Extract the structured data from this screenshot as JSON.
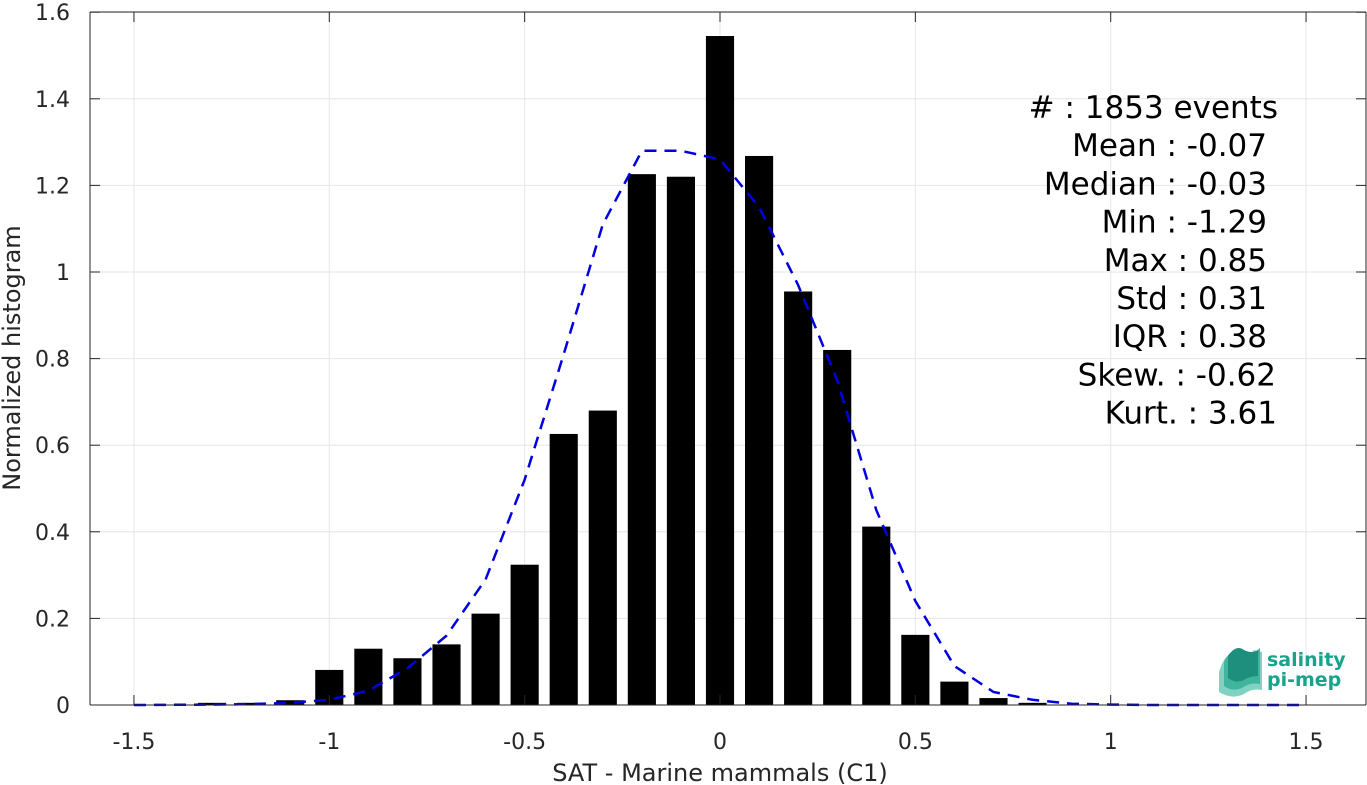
{
  "chart_data": {
    "type": "bar",
    "xlabel": "SAT - Marine mammals (C1)",
    "ylabel": "Normalized histogram",
    "xlim": [
      -1.5,
      1.5
    ],
    "ylim": [
      0,
      1.6
    ],
    "grid": true,
    "x_ticks": [
      "-1.5",
      "-1",
      "-0.5",
      "0",
      "0.5",
      "1",
      "1.5"
    ],
    "y_ticks": [
      "0",
      "0.2",
      "0.4",
      "0.6",
      "0.8",
      "1",
      "1.2",
      "1.4",
      "1.6"
    ],
    "bin_width": 0.1,
    "x": [
      -1.3,
      -1.2,
      -1.1,
      -1.0,
      -0.9,
      -0.8,
      -0.7,
      -0.6,
      -0.5,
      -0.4,
      -0.3,
      -0.2,
      -0.1,
      0.0,
      0.1,
      0.2,
      0.3,
      0.4,
      0.5,
      0.6,
      0.7,
      0.8
    ],
    "values": [
      0.005,
      0.005,
      0.011,
      0.081,
      0.13,
      0.108,
      0.14,
      0.211,
      0.324,
      0.626,
      0.68,
      1.226,
      1.22,
      1.545,
      1.268,
      0.955,
      0.82,
      0.412,
      0.162,
      0.054,
      0.016,
      0.005
    ],
    "fit_curve": {
      "style": "dashed",
      "color": "#0000e0",
      "x": [
        -1.5,
        -1.3,
        -1.2,
        -1.1,
        -1.0,
        -0.9,
        -0.8,
        -0.7,
        -0.6,
        -0.5,
        -0.4,
        -0.3,
        -0.2,
        -0.1,
        0.0,
        0.1,
        0.2,
        0.3,
        0.4,
        0.5,
        0.6,
        0.7,
        0.8,
        0.9,
        1.0,
        1.1,
        1.2,
        1.3,
        1.5
      ],
      "y": [
        0.0,
        0.001,
        0.002,
        0.005,
        0.012,
        0.033,
        0.085,
        0.16,
        0.29,
        0.52,
        0.81,
        1.11,
        1.28,
        1.28,
        1.26,
        1.15,
        0.97,
        0.75,
        0.45,
        0.24,
        0.09,
        0.03,
        0.012,
        0.003,
        0.001,
        0.0,
        0.0,
        0.0,
        0.0
      ]
    },
    "stats": [
      "#  : 1853 events",
      "Mean : -0.07",
      "Median : -0.03",
      "Min : -1.29",
      "Max : 0.85",
      "Std : 0.31",
      "IQR : 0.38",
      "Skew. : -0.62",
      "Kurt. : 3.61"
    ],
    "bar_color": "#000000"
  },
  "logo": {
    "line1": "salinity",
    "line2": "pi-mep",
    "icon": "salinity-wave-icon",
    "color": "#1aa38b"
  }
}
